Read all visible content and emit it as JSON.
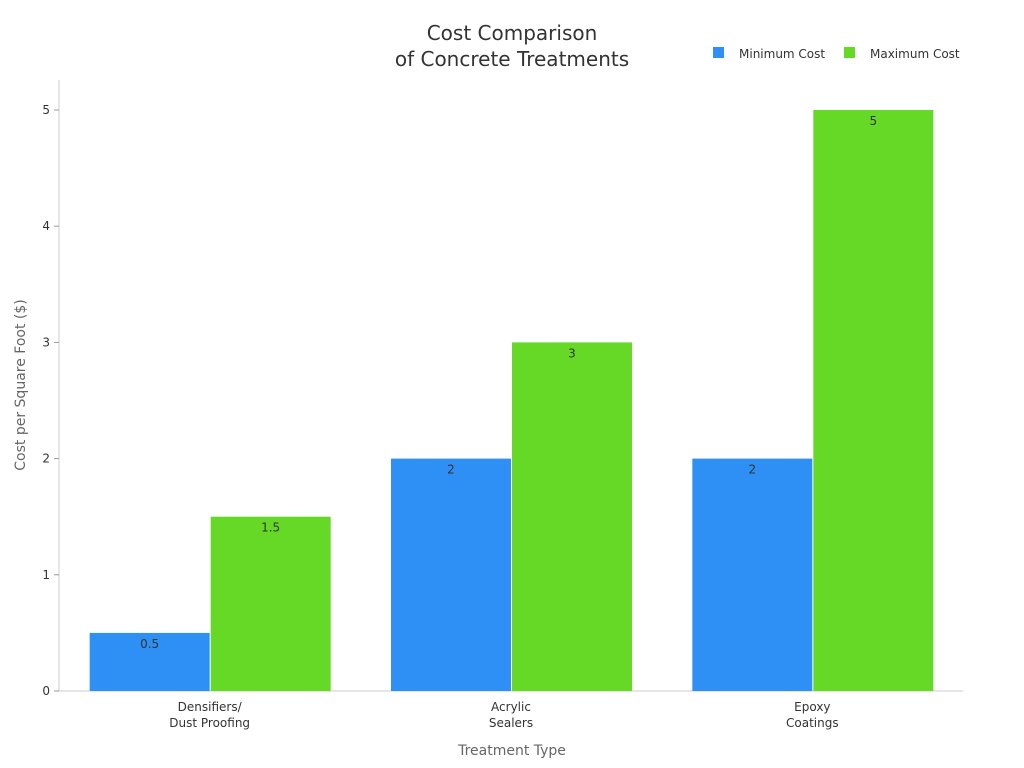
{
  "chart_data": {
    "type": "bar",
    "title_lines": [
      "Cost Comparison",
      "of Concrete Treatments"
    ],
    "xlabel": "Treatment Type",
    "ylabel": "Cost per Square Foot ($)",
    "categories": [
      [
        "Densifiers/",
        "Dust Proofing"
      ],
      [
        "Acrylic",
        "Sealers"
      ],
      [
        "Epoxy",
        "Coatings"
      ]
    ],
    "series": [
      {
        "name": "Minimum Cost",
        "color": "#2e90f5",
        "values": [
          0.5,
          2,
          2
        ],
        "labels": [
          "0.5",
          "2",
          "2"
        ]
      },
      {
        "name": "Maximum Cost",
        "color": "#66d926",
        "values": [
          1.5,
          3,
          5
        ],
        "labels": [
          "1.5",
          "3",
          "5"
        ]
      }
    ],
    "ylim": [
      0,
      5.25
    ],
    "yticks": [
      0,
      1,
      2,
      3,
      4,
      5
    ],
    "grid": false,
    "legend": "top-right"
  }
}
